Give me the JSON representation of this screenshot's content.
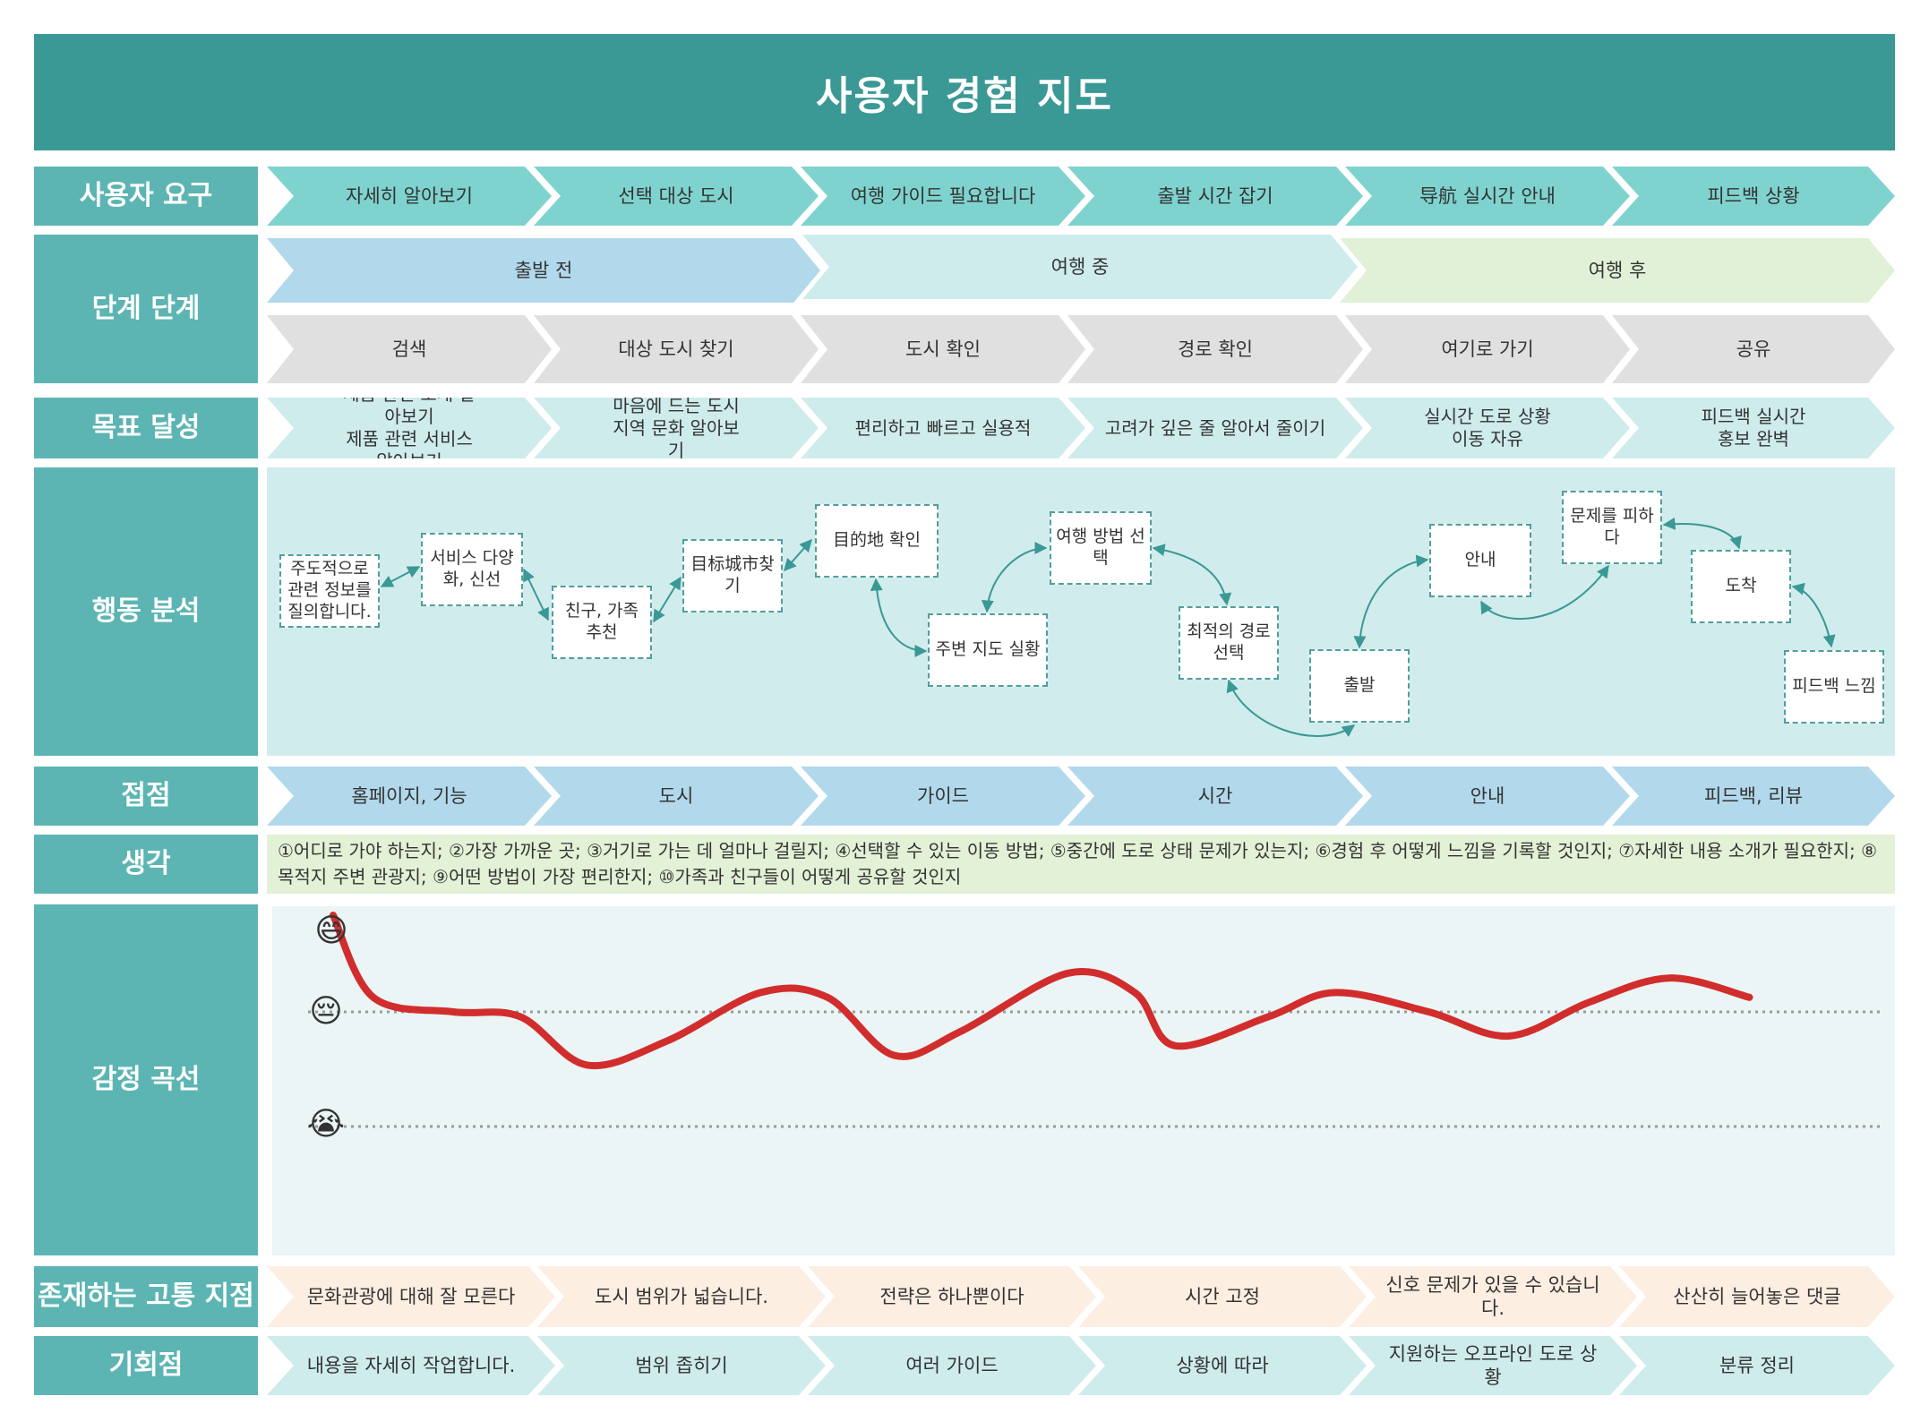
{
  "title": "사용자 경험 지도",
  "row_labels": {
    "needs": "사용자 요구",
    "stages": "단계 단계",
    "goals": "목표 달성",
    "actions": "행동 분석",
    "touchpoints": "접점",
    "thoughts": "생각",
    "emotion": "감정 곡선",
    "pains": "존재하는 고통 지점",
    "opportunities": "기회점"
  },
  "needs": [
    "자세히 알아보기",
    "선택 대상 도시",
    "여행 가이드 필요합니다",
    "출발 시간 잡기",
    "导航 실시간 안내",
    "피드백 상황"
  ],
  "phases": [
    "출발 전",
    "여행 중",
    "여행 후"
  ],
  "steps": [
    "검색",
    "대상 도시 찾기",
    "도시 확인",
    "경로 확인",
    "여기로 가기",
    "공유"
  ],
  "goals": [
    [
      "제품 관련 소개 알아보기",
      "제품 관련 서비스 알아보기"
    ],
    [
      "마음에 드는 도시",
      "지역 문화 알아보기"
    ],
    [
      "편리하고 빠르고 실용적"
    ],
    [
      "고려가 깊은 줄 알아서 줄이기"
    ],
    [
      "실시간 도로 상황",
      "이동 자유"
    ],
    [
      "피드백 실시간",
      "홍보 완벽"
    ]
  ],
  "actions": {
    "n1": "주도적으로 관련 정보를 질의합니다.",
    "n2": "서비스 다양화, 신선",
    "n3": "친구, 가족 추천",
    "n4": "目标城市찾기",
    "n5": "目的地 확인",
    "n6": "주변 지도 실황",
    "n7": "여행 방법 선택",
    "n8": "최적의 경로 선택",
    "n9": "출발",
    "n10": "안내",
    "n11": "문제를 피하다",
    "n12": "도착",
    "n13": "피드백 느낌"
  },
  "touchpoints": [
    "홈페이지, 기능",
    "도시",
    "가이드",
    "시간",
    "안내",
    "피드백, 리뷰"
  ],
  "thoughts": "①어디로 가야 하는지; ②가장 가까운 곳; ③거기로 가는 데 얼마나 걸릴지; ④선택할 수 있는 이동 방법; ⑤중간에 도로 상태 문제가 있는지; ⑥경험 후 어떻게 느낌을 기록할 것인지; ⑦자세한 내용 소개가 필요한지; ⑧목적지 주변 관광지; ⑨어떤 방법이 가장 편리한지; ⑩가족과 친구들이 어떻게 공유할 것인지",
  "emotion": {
    "levels": {
      "happy": "😄",
      "neutral": "😔",
      "sad": "😭"
    },
    "curve_color": "#d22d2d",
    "curve_points": [
      [
        0.0,
        1.0
      ],
      [
        0.03,
        0.15
      ],
      [
        0.09,
        0.0
      ],
      [
        0.14,
        -0.05
      ],
      [
        0.19,
        -0.55
      ],
      [
        0.25,
        -0.3
      ],
      [
        0.32,
        0.2
      ],
      [
        0.37,
        0.15
      ],
      [
        0.42,
        -0.45
      ],
      [
        0.47,
        -0.2
      ],
      [
        0.55,
        0.4
      ],
      [
        0.6,
        0.2
      ],
      [
        0.63,
        -0.35
      ],
      [
        0.7,
        -0.05
      ],
      [
        0.75,
        0.2
      ],
      [
        0.82,
        0.0
      ],
      [
        0.88,
        -0.25
      ],
      [
        0.94,
        0.1
      ],
      [
        1.0,
        0.35
      ],
      [
        1.06,
        0.15
      ]
    ]
  },
  "pains": [
    "문화관광에 대해 잘 모른다",
    "도시 범위가 넓습니다.",
    "전략은 하나뿐이다",
    "시간 고정",
    "신호 문제가 있을 수 있습니다.",
    "산산히 늘어놓은 댓글"
  ],
  "opportunities": [
    "내용을 자세히 작업합니다.",
    "범위 좁히기",
    "여러 가이드",
    "상황에 따라",
    "지원하는 오프라인 도로 상황",
    "분류 정리"
  ],
  "colors": {
    "title": "#3a9895",
    "label": "#5cb5b3",
    "needs": "#7fd3cf",
    "phase_before": "#b2d8ec",
    "phase_during": "#cfecec",
    "phase_after": "#e1f1d7",
    "steps": "#e0e0e0",
    "goals": "#cfecec",
    "touchpoints": "#b2d8ec",
    "pains": "#fdeee2",
    "opportunities": "#cfecec"
  }
}
